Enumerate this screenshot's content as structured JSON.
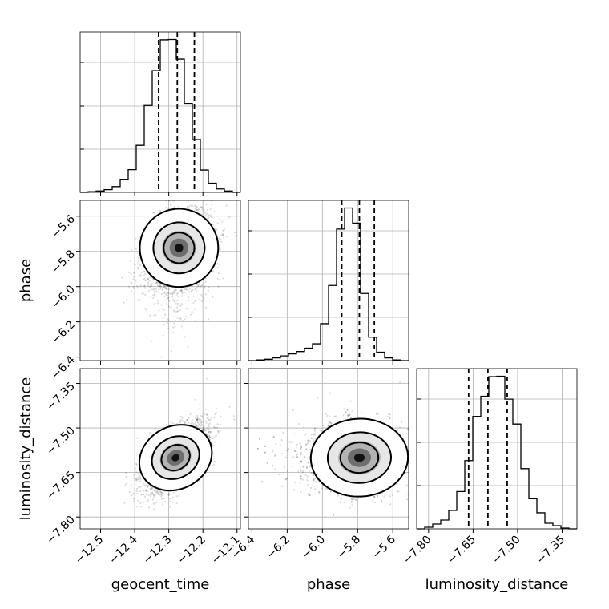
{
  "chart_data": {
    "type": "corner",
    "parameters": [
      "geocent_time",
      "phase",
      "luminosity_distance"
    ],
    "axis_labels": {
      "x": [
        "geocent_time",
        "phase",
        "luminosity_distance"
      ],
      "y": [
        "phase",
        "luminosity_distance"
      ]
    },
    "ranges": {
      "geocent_time": [
        -12.56,
        -12.09
      ],
      "phase": [
        -6.42,
        -5.51
      ],
      "luminosity_distance": [
        -7.84,
        -7.3
      ]
    },
    "ticks": {
      "geocent_time": [
        {
          "v": -12.5,
          "label": "−12.5"
        },
        {
          "v": -12.4,
          "label": "−12.4"
        },
        {
          "v": -12.3,
          "label": "−12.3"
        },
        {
          "v": -12.2,
          "label": "−12.2"
        },
        {
          "v": -12.1,
          "label": "−12.1"
        }
      ],
      "phase": [
        {
          "v": -6.4,
          "label": "−6.4"
        },
        {
          "v": -6.2,
          "label": "−6.2"
        },
        {
          "v": -6.0,
          "label": "−6.0"
        },
        {
          "v": -5.8,
          "label": "−5.8"
        },
        {
          "v": -5.6,
          "label": "−5.6"
        }
      ],
      "luminosity_distance": [
        {
          "v": -7.8,
          "label": "−7.80"
        },
        {
          "v": -7.65,
          "label": "−7.65"
        },
        {
          "v": -7.5,
          "label": "−7.50"
        },
        {
          "v": -7.35,
          "label": "−7.35"
        }
      ]
    },
    "quantiles": {
      "geocent_time": [
        -12.33,
        -12.275,
        -12.225
      ],
      "phase": [
        -5.89,
        -5.79,
        -5.705
      ],
      "luminosity_distance": [
        -7.665,
        -7.6,
        -7.535
      ]
    },
    "histograms": {
      "geocent_time": {
        "edges_start": -12.56,
        "bin_width": 0.0235,
        "counts": [
          0,
          2,
          4,
          8,
          17,
          37,
          67,
          139,
          257,
          359,
          449,
          450,
          392,
          261,
          156,
          66,
          27,
          10,
          4,
          0
        ]
      },
      "phase": {
        "edges_start": -6.42,
        "bin_width": 0.0455,
        "counts": [
          0,
          2,
          4,
          8,
          14,
          20,
          27,
          37,
          50,
          110,
          224,
          392,
          455,
          410,
          200,
          70,
          25,
          8,
          2,
          0
        ]
      },
      "luminosity_distance": {
        "edges_start": -7.84,
        "bin_width": 0.027,
        "counts": [
          0,
          4,
          12,
          22,
          46,
          93,
          170,
          280,
          330,
          379,
          380,
          323,
          261,
          150,
          75,
          40,
          14,
          8,
          2,
          0
        ]
      }
    },
    "density_2d": [
      {
        "x": "geocent_time",
        "y": "phase",
        "mean": [
          -12.27,
          -5.78
        ],
        "sd": [
          0.05,
          0.11
        ],
        "rho": 0.35
      },
      {
        "x": "geocent_time",
        "y": "luminosity_distance",
        "mean": [
          -12.28,
          -7.6
        ],
        "sd": [
          0.048,
          0.058
        ],
        "rho": 0.6
      },
      {
        "x": "phase",
        "y": "luminosity_distance",
        "mean": [
          -5.79,
          -7.6
        ],
        "sd": [
          0.12,
          0.058
        ],
        "rho": 0.05
      }
    ],
    "contour_levels_sigma": [
      0.5,
      1.0,
      1.5
    ],
    "grid": true,
    "colors": {
      "line": "#000000",
      "grid": "#b0b0b0",
      "samples": "#000000"
    }
  }
}
